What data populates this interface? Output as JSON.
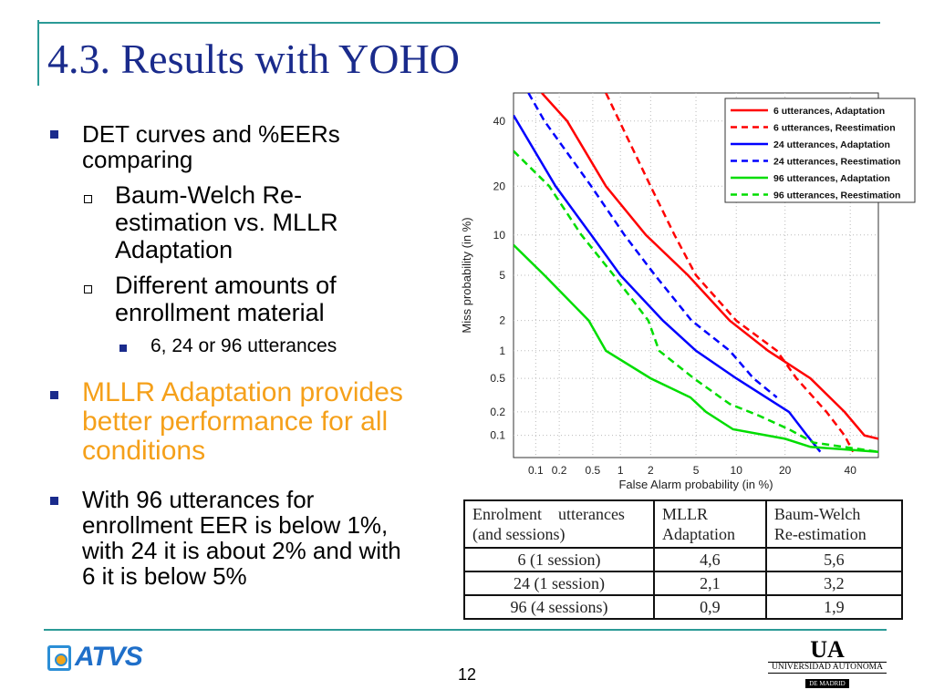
{
  "title": "4.3. Results with YOHO",
  "bullets": {
    "b1": [
      "DET curves and %EERs",
      "comparing"
    ],
    "b1_sub1": [
      "Baum-Welch Re-",
      "estimation vs. MLLR",
      "Adaptation"
    ],
    "b1_sub2": [
      "Different amounts of",
      "enrollment material"
    ],
    "b1_sub2_sub": "6, 24 or 96 utterances",
    "b2": [
      "MLLR Adaptation provides",
      "better performance for all",
      "conditions"
    ],
    "b3": [
      "With 96 utterances for",
      "enrollment EER is below 1%,",
      "with 24 it is about 2% and with",
      "6 it is below 5%"
    ]
  },
  "colors": {
    "title": "#1a2b8c",
    "accent": "#2a9a96",
    "highlight": "#f5a01a"
  },
  "table": {
    "headers": [
      [
        "Enrolment    utterances",
        "(and sessions)"
      ],
      [
        "MLLR",
        "Adaptation"
      ],
      [
        "Baum-Welch",
        "Re-estimation"
      ]
    ],
    "rows": [
      [
        "6 (1 session)",
        "4,6",
        "5,6"
      ],
      [
        "24 (1 session)",
        "2,1",
        "3,2"
      ],
      [
        "96 (4 sessions)",
        "0,9",
        "1,9"
      ]
    ]
  },
  "footer": {
    "page": "12",
    "logo_left": "ATVS",
    "logo_right": [
      "UA",
      "UNIVERSIDAD AUTONOMA",
      "DE MADRID"
    ]
  },
  "chart_data": {
    "type": "line",
    "title": "",
    "xlabel": "False Alarm probability (in %)",
    "ylabel": "Miss probability (in %)",
    "scale": "normal-deviate",
    "xlim": [
      0.05,
      50
    ],
    "ylim": [
      0.05,
      50
    ],
    "xticks": [
      "0.1",
      "0.2",
      "0.5",
      "1",
      "2",
      "5",
      "10",
      "20",
      "40"
    ],
    "yticks": [
      "0.1",
      "0.2",
      "0.5",
      "1",
      "2",
      "5",
      "10",
      "20",
      "40"
    ],
    "grid": true,
    "legend_position": "top-right",
    "series": [
      {
        "name": "6 utterances, Adaptation",
        "color": "#ff0000",
        "dash": false,
        "points": [
          [
            0.12,
            50
          ],
          [
            0.25,
            40
          ],
          [
            0.7,
            20
          ],
          [
            1.8,
            10
          ],
          [
            4.3,
            5
          ],
          [
            9,
            2
          ],
          [
            16,
            1
          ],
          [
            27,
            0.5
          ],
          [
            38,
            0.2
          ],
          [
            45,
            0.1
          ],
          [
            50,
            0.09
          ]
        ]
      },
      {
        "name": "6 utterances, Reestimation",
        "color": "#ff0000",
        "dash": true,
        "points": [
          [
            0.7,
            50
          ],
          [
            2,
            20
          ],
          [
            3.3,
            10
          ],
          [
            5,
            5
          ],
          [
            10,
            2
          ],
          [
            18,
            1
          ],
          [
            23,
            0.5
          ],
          [
            32,
            0.2
          ],
          [
            38,
            0.1
          ],
          [
            41,
            0.06
          ]
        ]
      },
      {
        "name": "24 utterances, Adaptation",
        "color": "#0000ff",
        "dash": false,
        "points": [
          [
            0.05,
            42
          ],
          [
            0.18,
            20
          ],
          [
            0.48,
            10
          ],
          [
            1,
            5
          ],
          [
            2.6,
            2
          ],
          [
            5,
            1
          ],
          [
            10,
            0.5
          ],
          [
            21,
            0.2
          ],
          [
            26,
            0.1
          ],
          [
            30,
            0.06
          ]
        ]
      },
      {
        "name": "24 utterances, Reestimation",
        "color": "#0000ff",
        "dash": true,
        "points": [
          [
            0.08,
            50
          ],
          [
            0.13,
            40
          ],
          [
            0.48,
            20
          ],
          [
            1.1,
            10
          ],
          [
            2.2,
            5
          ],
          [
            4.6,
            2
          ],
          [
            9,
            1
          ],
          [
            13,
            0.5
          ],
          [
            18,
            0.3
          ]
        ]
      },
      {
        "name": "96 utterances, Adaptation",
        "color": "#00dd00",
        "dash": false,
        "points": [
          [
            0.05,
            8.5
          ],
          [
            0.13,
            5
          ],
          [
            0.45,
            2
          ],
          [
            0.7,
            1
          ],
          [
            2,
            0.5
          ],
          [
            4.5,
            0.3
          ],
          [
            6,
            0.2
          ],
          [
            9.5,
            0.12
          ],
          [
            20,
            0.09
          ],
          [
            27,
            0.07
          ],
          [
            50,
            0.06
          ]
        ]
      },
      {
        "name": "96 utterances, Reestimation",
        "color": "#00dd00",
        "dash": true,
        "points": [
          [
            0.05,
            30
          ],
          [
            0.15,
            20
          ],
          [
            0.37,
            10
          ],
          [
            0.85,
            5
          ],
          [
            1.9,
            2
          ],
          [
            2.4,
            1
          ],
          [
            4.8,
            0.5
          ],
          [
            9,
            0.25
          ],
          [
            14,
            0.18
          ],
          [
            21,
            0.12
          ],
          [
            28,
            0.08
          ],
          [
            50,
            0.06
          ]
        ]
      }
    ]
  }
}
